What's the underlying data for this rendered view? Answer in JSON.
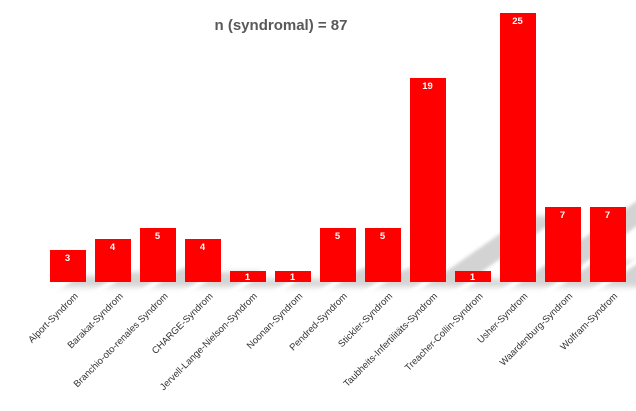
{
  "chart_data": {
    "type": "bar",
    "title": "n (syndromal) = 87",
    "total": 87,
    "categories": [
      "Alport-Syndrom",
      "Barakat-Syndrom",
      "Branchio-oto-renales Syndrom",
      "CHARGE-Syndrom",
      "Jervell-Lange-Nielson-Syndrom",
      "Noonan-Syndrom",
      "Pendred-Syndrom",
      "Stickler-Syndrom",
      "Taubheits-Infertilitäts-Syndrom",
      "Treacher-Collin-Syndrom",
      "Usher-Syndrom",
      "Waardenburg-Syndrom",
      "Wolfram-Syndrom"
    ],
    "values": [
      3,
      4,
      5,
      4,
      1,
      1,
      5,
      5,
      19,
      1,
      25,
      7,
      7
    ],
    "ylim": [
      0,
      25
    ],
    "xlabel": "",
    "ylabel": "",
    "grid": false,
    "legend": false,
    "data_labels_position": "inside-end",
    "bar_color": "#ff0000",
    "value_label_color": "#ffffff",
    "title_color": "#595959",
    "axis_label_color": "#333333",
    "shadow_color": "#a8a8a8",
    "background_color": "#ffffff"
  }
}
